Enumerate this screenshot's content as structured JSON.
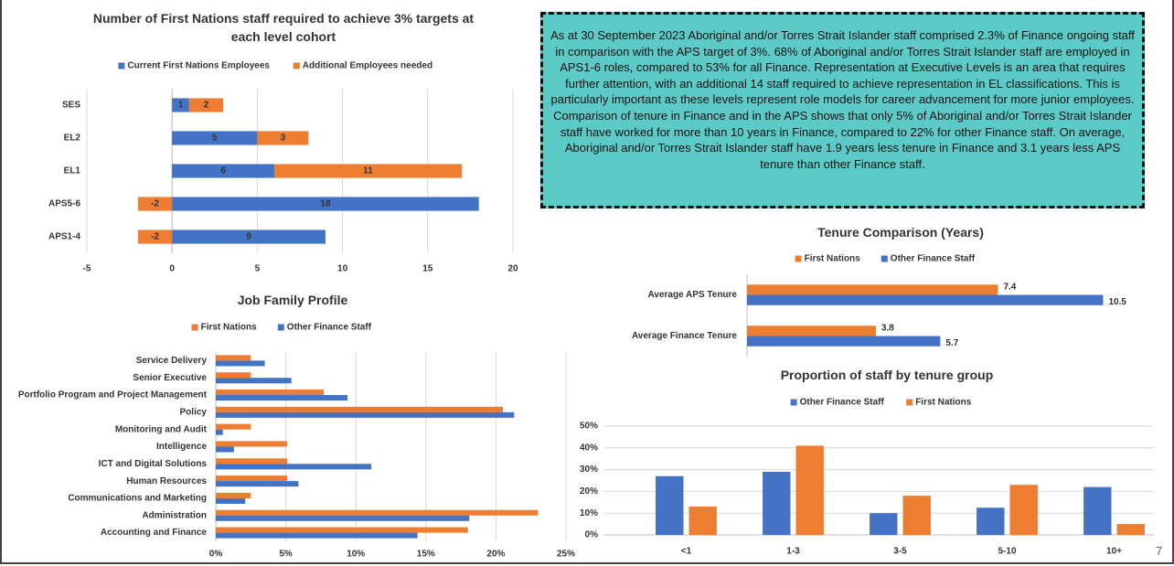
{
  "chart_data": [
    {
      "type": "bar",
      "orientation": "horizontal",
      "stacked": true,
      "data_labels": true,
      "grid": true,
      "title": "Number of First Nations staff required to achieve 3% targets at each level cohort",
      "categories": [
        "SES",
        "EL2",
        "EL1",
        "APS5-6",
        "APS1-4"
      ],
      "series": [
        {
          "name": "Current First Nations Employees",
          "color": "#4472c4",
          "values": [
            1,
            5,
            6,
            18,
            9
          ]
        },
        {
          "name": "Additional Employees needed",
          "color": "#ed7d31",
          "values": [
            2,
            3,
            11,
            -2,
            -2
          ]
        }
      ],
      "xlim": [
        -5,
        20
      ],
      "xticks": [
        -5,
        0,
        5,
        10,
        15,
        20
      ]
    },
    {
      "type": "bar",
      "orientation": "horizontal",
      "stacked": false,
      "data_labels": false,
      "grid": true,
      "title": "Job Family Profile",
      "categories": [
        "Service Delivery",
        "Senior Executive",
        "Portfolio Program and Project Management",
        "Policy",
        "Monitoring and Audit",
        "Intelligence",
        "ICT and Digital Solutions",
        "Human Resources",
        "Communications and Marketing",
        "Administration",
        "Accounting and Finance"
      ],
      "series": [
        {
          "name": "First Nations",
          "color": "#ed7d31",
          "values": [
            2.5,
            2.5,
            7.7,
            20.5,
            2.5,
            5.1,
            5.1,
            5.1,
            2.5,
            23.0,
            18.0
          ]
        },
        {
          "name": "Other Finance Staff",
          "color": "#4472c4",
          "values": [
            3.5,
            5.4,
            9.4,
            21.3,
            0.5,
            1.3,
            11.1,
            5.9,
            2.1,
            18.1,
            14.4
          ]
        }
      ],
      "xlim": [
        0,
        25
      ],
      "xticks": [
        {
          "value": 0,
          "label": "0%"
        },
        {
          "value": 5,
          "label": "5%"
        },
        {
          "value": 10,
          "label": "10%"
        },
        {
          "value": 15,
          "label": "15%"
        },
        {
          "value": 20,
          "label": "20%"
        },
        {
          "value": 25,
          "label": "25%"
        }
      ]
    },
    {
      "type": "bar",
      "orientation": "horizontal",
      "stacked": false,
      "data_labels": true,
      "grid": false,
      "title": "Tenure Comparison (Years)",
      "categories": [
        "Average APS Tenure",
        "Average Finance Tenure"
      ],
      "series": [
        {
          "name": "First Nations",
          "color": "#ed7d31",
          "values": [
            7.4,
            3.8
          ]
        },
        {
          "name": "Other Finance Staff",
          "color": "#4472c4",
          "values": [
            10.5,
            5.7
          ]
        }
      ],
      "xlim": [
        0,
        11
      ]
    },
    {
      "type": "bar",
      "orientation": "vertical",
      "stacked": false,
      "data_labels": false,
      "grid": true,
      "title": "Proportion of staff by tenure group",
      "categories": [
        "<1",
        "1-3",
        "3-5",
        "5-10",
        "10+"
      ],
      "series": [
        {
          "name": "Other Finance Staff",
          "color": "#4472c4",
          "values": [
            27,
            29,
            10,
            12.5,
            22
          ]
        },
        {
          "name": "First Nations",
          "color": "#ed7d31",
          "values": [
            13,
            41,
            18,
            23,
            5
          ]
        }
      ],
      "ylim": [
        0,
        50
      ],
      "yticks": [
        {
          "value": 0,
          "label": "0%"
        },
        {
          "value": 10,
          "label": "10%"
        },
        {
          "value": 20,
          "label": "20%"
        },
        {
          "value": 30,
          "label": "30%"
        },
        {
          "value": 40,
          "label": "40%"
        },
        {
          "value": 50,
          "label": "50%"
        }
      ]
    }
  ],
  "text_box": {
    "paragraphs": [
      "As at 30 September 2023 Aboriginal and/or Torres Strait Islander staff comprised 2.3% of Finance ongoing staff in comparison with the APS target of 3%. 68% of Aboriginal and/or Torres Strait Islander staff are employed in APS1-6 roles, compared to 53% for all Finance. Representation at Executive Levels is an area that requires further attention, with an additional 14 staff required to achieve representation in EL classifications. This is particularly important as these levels represent role models for career advancement for more junior employees.",
      "Comparison of tenure in Finance and in the APS shows that only 5% of Aboriginal and/or Torres Strait Islander staff have worked for more than 10 years in Finance, compared to 22% for other Finance staff. On average, Aboriginal and/or Torres Strait Islander staff have 1.9 years less tenure in Finance and 3.1 years less APS tenure than other Finance staff."
    ]
  },
  "page_number": "7"
}
